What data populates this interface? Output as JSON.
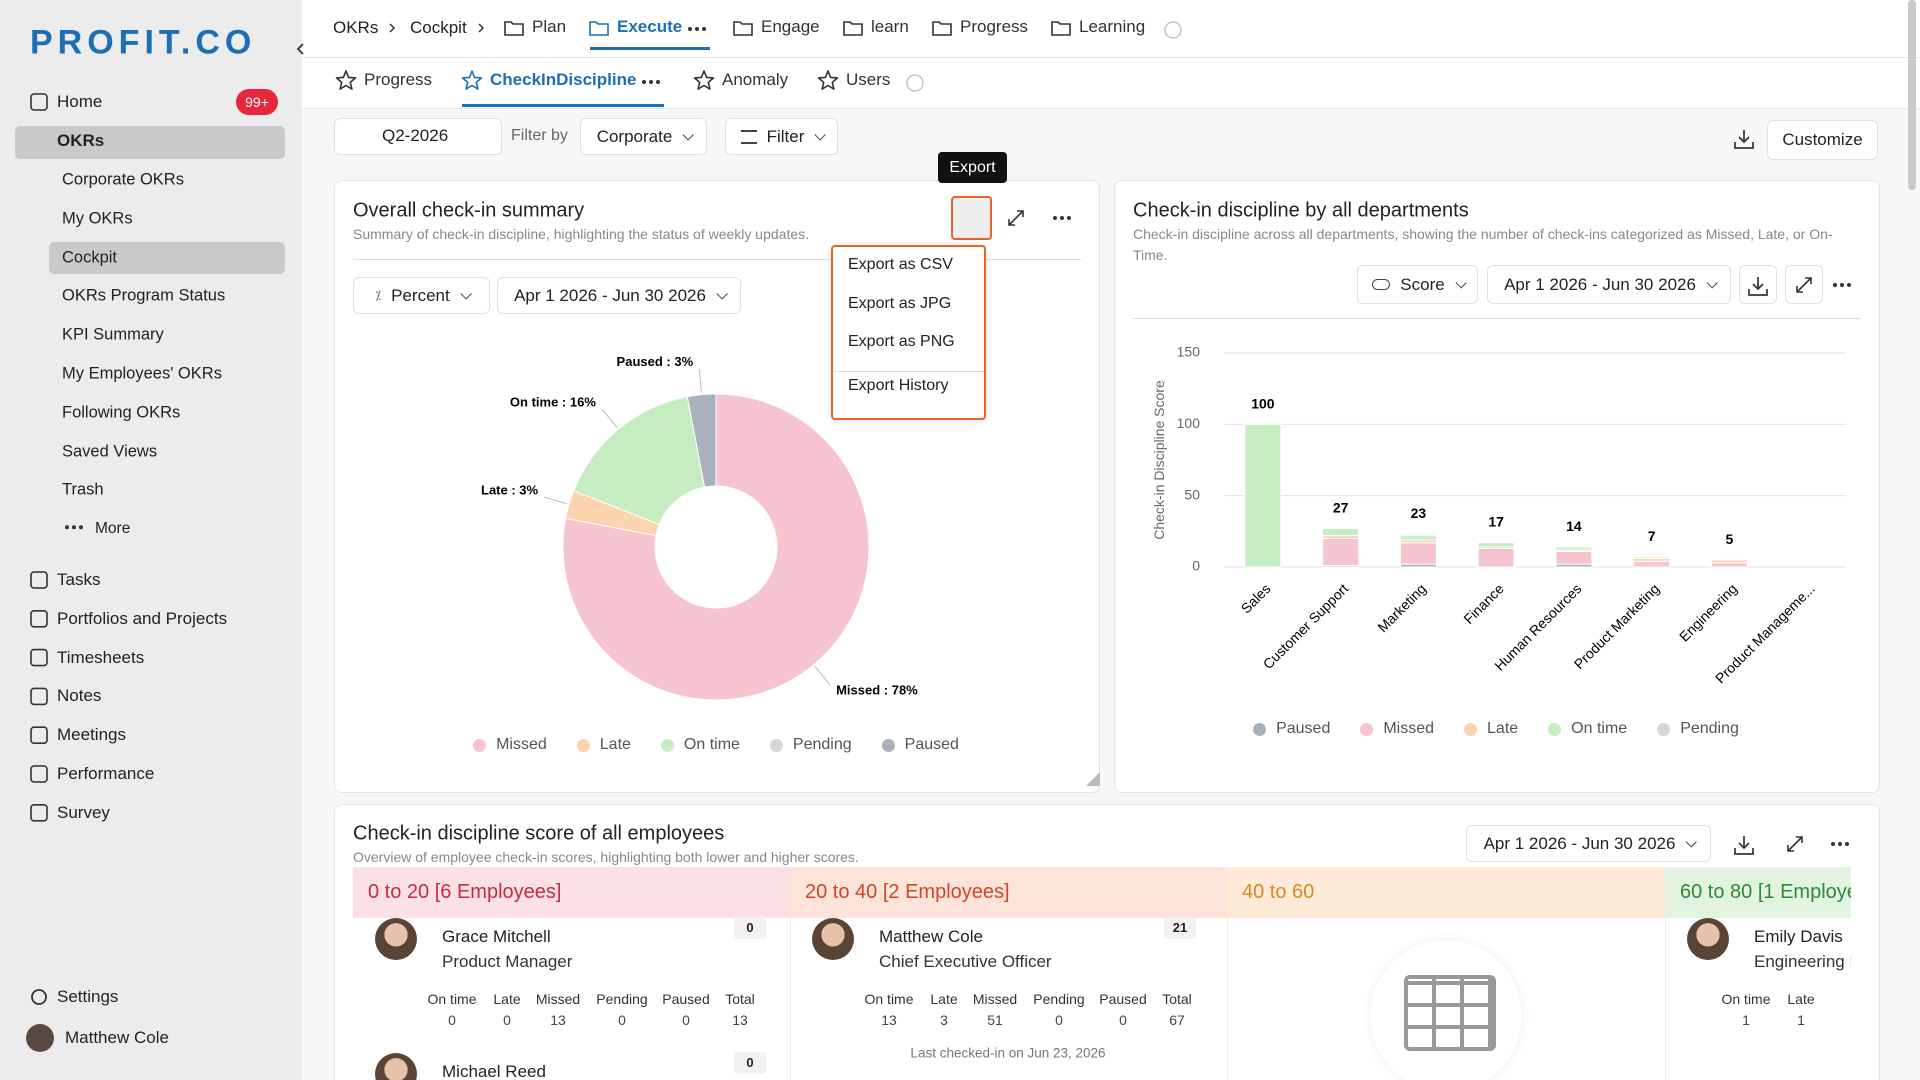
{
  "brand": "PROFIT.CO",
  "sidebar": {
    "home": {
      "label": "Home",
      "badge": "99+"
    },
    "okrs": {
      "label": "OKRs",
      "items": [
        "Corporate OKRs",
        "My OKRs",
        "Cockpit",
        "OKRs Program Status",
        "KPI Summary",
        "My Employees' OKRs",
        "Following OKRs",
        "Saved Views",
        "Trash"
      ],
      "more": "More"
    },
    "tools": [
      "Tasks",
      "Portfolios and Projects",
      "Timesheets",
      "Notes",
      "Meetings",
      "Performance",
      "Survey"
    ],
    "settings": "Settings",
    "user": "Matthew Cole"
  },
  "breadcrumb": [
    "OKRs",
    "Cockpit"
  ],
  "tabs": [
    "Plan",
    "Execute",
    "Engage",
    "learn",
    "Progress",
    "Learning"
  ],
  "subtabs": [
    "Progress",
    "CheckInDiscipline",
    "Anomaly",
    "Users"
  ],
  "toolbar": {
    "period": "Q2-2026",
    "filter_label": "Filter by",
    "filter_value": "Corporate",
    "filter_button": "Filter",
    "customize": "Customize"
  },
  "export_menu": {
    "tooltip": "Export",
    "items": [
      "Export as CSV",
      "Export as JPG",
      "Export as PNG",
      "Export History"
    ]
  },
  "summary_card": {
    "title": "Overall check-in summary",
    "subtitle": "Summary of check-in discipline, highlighting the status of weekly updates.",
    "mode": "Percent",
    "range": "Apr 1 2026 - Jun 30 2026"
  },
  "departments_card": {
    "title": "Check-in discipline by all departments",
    "subtitle": "Check-in discipline across all departments, showing the number of check-ins categorized as Missed, Late, or On-Time.",
    "mode": "Score",
    "range": "Apr 1 2026 - Jun 30 2026"
  },
  "employees_card": {
    "title": "Check-in discipline score of all employees",
    "subtitle": "Overview of employee check-in scores, highlighting both lower and higher scores.",
    "range": "Apr 1 2026 - Jun 30 2026",
    "stat_labels": [
      "On time",
      "Late",
      "Missed",
      "Pending",
      "Paused",
      "Total"
    ],
    "groups": [
      {
        "label": "0 to 20 [6 Employees]",
        "employees": [
          {
            "name": "Grace Mitchell",
            "role": "Product Manager",
            "score": 0,
            "stats": [
              0,
              0,
              13,
              0,
              0,
              13
            ]
          },
          {
            "name": "Michael Reed",
            "score": 0
          }
        ]
      },
      {
        "label": "20 to 40 [2 Employees]",
        "employees": [
          {
            "name": "Matthew Cole",
            "role": "Chief Executive Officer",
            "score": 21,
            "stats": [
              13,
              3,
              51,
              0,
              0,
              67
            ],
            "last_checkin": "Last checked-in on Jun 23, 2026"
          }
        ]
      },
      {
        "label": "40 to 60",
        "employees": []
      },
      {
        "label": "60 to 80 [1 Employe",
        "employees": [
          {
            "name": "Emily Davis",
            "role": "Engineering H",
            "stats": [
              1,
              1
            ]
          }
        ]
      }
    ]
  },
  "chart_data": [
    {
      "type": "pie",
      "donut": true,
      "categories": [
        "Missed",
        "Late",
        "On time",
        "Pending",
        "Paused"
      ],
      "values": [
        78,
        3,
        16,
        0,
        3
      ],
      "value_labels": [
        "Missed : 78%",
        "Late : 3%",
        "On time : 16%",
        null,
        "Paused : 3%"
      ],
      "colors": [
        "#f5c4ce",
        "#fbd3ad",
        "#c6edc2",
        "#d6d6d6",
        "#a9b1bd"
      ],
      "legend": "bottom"
    },
    {
      "type": "bar",
      "stacked": true,
      "categories": [
        "Sales",
        "Customer Support",
        "Marketing",
        "Finance",
        "Human Resources",
        "Product Marketing",
        "Engineering",
        "Product Manageme..."
      ],
      "series": [
        {
          "name": "Paused",
          "color": "#a9b1bd",
          "values": [
            0,
            1,
            2,
            0,
            2,
            0,
            0,
            0
          ]
        },
        {
          "name": "Missed",
          "color": "#f5c4ce",
          "values": [
            0,
            19,
            15,
            13,
            9,
            4,
            3,
            0
          ]
        },
        {
          "name": "Late",
          "color": "#fbd3ad",
          "values": [
            0,
            2,
            2,
            1,
            1,
            2,
            2,
            0
          ]
        },
        {
          "name": "On time",
          "color": "#c6edc2",
          "values": [
            100,
            5,
            3,
            3,
            2,
            1,
            0,
            0
          ]
        },
        {
          "name": "Pending",
          "color": "#d6d6d6",
          "values": [
            0,
            0,
            1,
            0,
            0,
            0,
            0,
            0
          ]
        }
      ],
      "totals": [
        100,
        27,
        23,
        17,
        14,
        7,
        5,
        null
      ],
      "ylabel": "Check-in Discipline Score",
      "ylim": [
        0,
        150
      ],
      "yticks": [
        0,
        50,
        100,
        150
      ],
      "grid": true,
      "legend": "bottom"
    }
  ]
}
